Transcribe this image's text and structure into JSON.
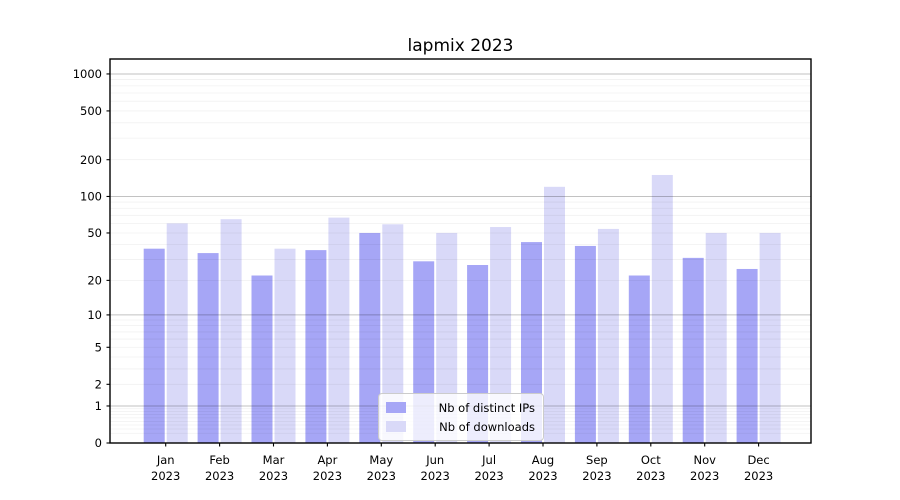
{
  "figure": {
    "title": "lapmix 2023"
  },
  "chart_data": {
    "type": "bar",
    "title": "lapmix 2023",
    "categories": [
      "Jan 2023",
      "Feb 2023",
      "Mar 2023",
      "Apr 2023",
      "May 2023",
      "Jun 2023",
      "Jul 2023",
      "Aug 2023",
      "Sep 2023",
      "Oct 2023",
      "Nov 2023",
      "Dec 2023"
    ],
    "months": [
      "Jan",
      "Feb",
      "Mar",
      "Apr",
      "May",
      "Jun",
      "Jul",
      "Aug",
      "Sep",
      "Oct",
      "Nov",
      "Dec"
    ],
    "year": "2023",
    "series": [
      {
        "name": "Nb of distinct IPs",
        "color": "#a6a6f6",
        "values": [
          37,
          34,
          22,
          36,
          50,
          29,
          27,
          42,
          39,
          22,
          31,
          25
        ]
      },
      {
        "name": "Nb of downloads",
        "color": "#d9d9f8",
        "values": [
          60,
          65,
          37,
          67,
          59,
          50,
          56,
          120,
          54,
          150,
          50,
          50
        ]
      }
    ],
    "yscale": "log(1+x)",
    "yticks": [
      1000,
      500,
      200,
      100,
      50,
      20,
      10,
      5,
      2,
      1,
      0
    ],
    "ylim": [
      0,
      1325
    ],
    "grid": "both",
    "legend_position": "lower center",
    "colors": {
      "spine": "#000000",
      "tick_label": "#000000",
      "major_grid": "rgba(0,0,0,0.24)",
      "minor_grid": "rgba(0,0,0,0.06)"
    }
  }
}
